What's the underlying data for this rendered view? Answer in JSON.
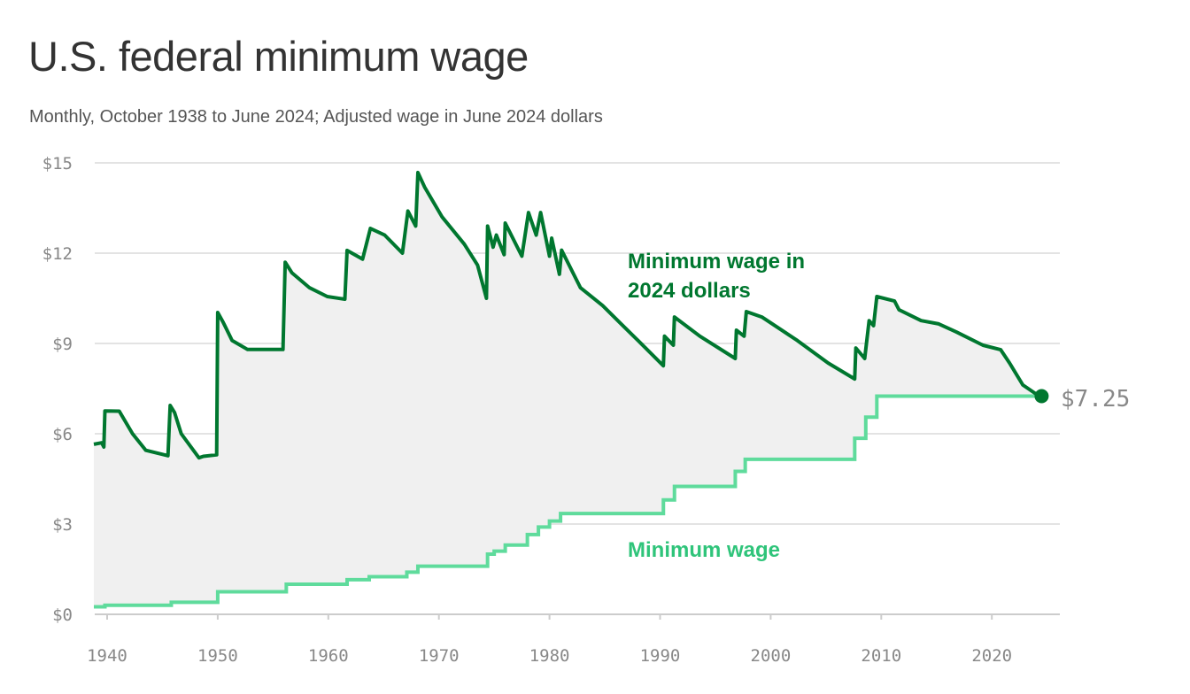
{
  "title": "U.S. federal minimum wage",
  "subtitle": "Monthly, October 1938 to June 2024; Adjusted wage in June 2024 dollars",
  "chart_data": {
    "type": "line",
    "title": "U.S. federal minimum wage",
    "subtitle": "Monthly, October 1938 to June 2024; Adjusted wage in June 2024 dollars",
    "xlim": [
      1938.75,
      2024.5
    ],
    "ylim": [
      0,
      15
    ],
    "x_ticks": [
      "1940",
      "1950",
      "1960",
      "1970",
      "1980",
      "1990",
      "2000",
      "2010",
      "2020"
    ],
    "y_ticks": [
      "$0",
      "$3",
      "$6",
      "$9",
      "$12",
      "$15"
    ],
    "grid": "horizontal",
    "colors": {
      "adjusted": "#00772f",
      "nominal": "#5fdb9c",
      "fill": "#f0f0f0"
    },
    "end_label": "$7.25",
    "series": [
      {
        "name": "Minimum wage in 2024 dollars",
        "label_lines": [
          "Minimum wage in",
          "2024 dollars"
        ],
        "points": [
          [
            1938.8,
            5.65
          ],
          [
            1939.5,
            5.7
          ],
          [
            1939.7,
            5.56
          ],
          [
            1939.8,
            6.76
          ],
          [
            1941.1,
            6.75
          ],
          [
            1942.3,
            6.0
          ],
          [
            1943.5,
            5.45
          ],
          [
            1945.5,
            5.27
          ],
          [
            1945.7,
            6.94
          ],
          [
            1946.1,
            6.7
          ],
          [
            1946.7,
            6.0
          ],
          [
            1948.3,
            5.2
          ],
          [
            1948.7,
            5.25
          ],
          [
            1949.9,
            5.3
          ],
          [
            1950.0,
            10.03
          ],
          [
            1950.5,
            9.7
          ],
          [
            1951.3,
            9.1
          ],
          [
            1952.7,
            8.8
          ],
          [
            1954.3,
            8.8
          ],
          [
            1955.9,
            8.8
          ],
          [
            1956.1,
            11.7
          ],
          [
            1956.7,
            11.35
          ],
          [
            1958.3,
            10.85
          ],
          [
            1959.9,
            10.56
          ],
          [
            1961.5,
            10.47
          ],
          [
            1961.7,
            12.09
          ],
          [
            1963.1,
            11.8
          ],
          [
            1963.8,
            12.82
          ],
          [
            1965.1,
            12.6
          ],
          [
            1966.7,
            12.0
          ],
          [
            1967.2,
            13.4
          ],
          [
            1967.9,
            12.9
          ],
          [
            1968.1,
            14.68
          ],
          [
            1968.7,
            14.2
          ],
          [
            1970.3,
            13.2
          ],
          [
            1972.3,
            12.3
          ],
          [
            1973.5,
            11.6
          ],
          [
            1974.3,
            10.5
          ],
          [
            1974.4,
            12.9
          ],
          [
            1974.9,
            12.2
          ],
          [
            1975.2,
            12.6
          ],
          [
            1975.9,
            11.95
          ],
          [
            1976.0,
            13.0
          ],
          [
            1977.5,
            11.9
          ],
          [
            1978.1,
            13.35
          ],
          [
            1978.8,
            12.6
          ],
          [
            1979.2,
            13.35
          ],
          [
            1980.0,
            11.9
          ],
          [
            1980.2,
            12.5
          ],
          [
            1980.9,
            11.3
          ],
          [
            1981.1,
            12.1
          ],
          [
            1982.8,
            10.85
          ],
          [
            1984.8,
            10.26
          ],
          [
            1986.4,
            9.68
          ],
          [
            1988.0,
            9.1
          ],
          [
            1990.3,
            8.26
          ],
          [
            1990.4,
            9.24
          ],
          [
            1991.2,
            8.94
          ],
          [
            1991.3,
            9.88
          ],
          [
            1993.6,
            9.24
          ],
          [
            1996.8,
            8.5
          ],
          [
            1996.9,
            9.44
          ],
          [
            1997.6,
            9.24
          ],
          [
            1997.8,
            10.06
          ],
          [
            1999.2,
            9.88
          ],
          [
            2002.4,
            9.1
          ],
          [
            2005.2,
            8.35
          ],
          [
            2007.6,
            7.82
          ],
          [
            2007.7,
            8.85
          ],
          [
            2008.5,
            8.5
          ],
          [
            2008.9,
            9.76
          ],
          [
            2009.3,
            9.59
          ],
          [
            2009.6,
            10.56
          ],
          [
            2011.2,
            10.41
          ],
          [
            2011.6,
            10.12
          ],
          [
            2013.6,
            9.76
          ],
          [
            2015.2,
            9.65
          ],
          [
            2016.8,
            9.38
          ],
          [
            2019.2,
            8.94
          ],
          [
            2020.8,
            8.79
          ],
          [
            2021.6,
            8.35
          ],
          [
            2022.8,
            7.62
          ],
          [
            2024.0,
            7.32
          ],
          [
            2024.5,
            7.25
          ]
        ]
      },
      {
        "name": "Minimum wage",
        "label_lines": [
          "Minimum wage"
        ],
        "steps": [
          [
            1938.8,
            0.25
          ],
          [
            1939.8,
            0.3
          ],
          [
            1945.8,
            0.4
          ],
          [
            1950.0,
            0.75
          ],
          [
            1956.2,
            1.0
          ],
          [
            1961.7,
            1.15
          ],
          [
            1963.7,
            1.25
          ],
          [
            1967.1,
            1.4
          ],
          [
            1968.1,
            1.6
          ],
          [
            1974.4,
            2.0
          ],
          [
            1975.0,
            2.1
          ],
          [
            1976.0,
            2.3
          ],
          [
            1978.0,
            2.65
          ],
          [
            1979.0,
            2.9
          ],
          [
            1980.0,
            3.1
          ],
          [
            1981.0,
            3.35
          ],
          [
            1990.3,
            3.8
          ],
          [
            1991.3,
            4.25
          ],
          [
            1996.8,
            4.75
          ],
          [
            1997.7,
            5.15
          ],
          [
            2007.6,
            5.85
          ],
          [
            2008.6,
            6.55
          ],
          [
            2009.6,
            7.25
          ],
          [
            2024.5,
            7.25
          ]
        ]
      }
    ]
  }
}
